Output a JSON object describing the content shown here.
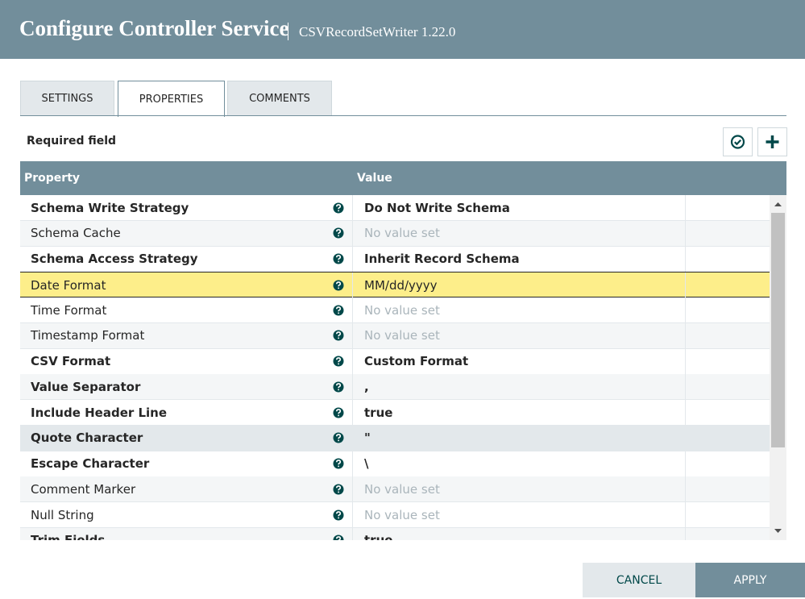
{
  "header": {
    "title": "Configure Controller Service",
    "subtitle": "CSVRecordSetWriter 1.22.0"
  },
  "tabs": [
    {
      "label": "SETTINGS",
      "active": false
    },
    {
      "label": "PROPERTIES",
      "active": true
    },
    {
      "label": "COMMENTS",
      "active": false
    }
  ],
  "required_label": "Required field",
  "table": {
    "columns": [
      "Property",
      "Value"
    ],
    "rows": [
      {
        "name": "Schema Write Strategy",
        "value": "Do Not Write Schema",
        "required": true,
        "placeholder": false,
        "state": "normal"
      },
      {
        "name": "Schema Cache",
        "value": "No value set",
        "required": false,
        "placeholder": true,
        "state": "normal"
      },
      {
        "name": "Schema Access Strategy",
        "value": "Inherit Record Schema",
        "required": true,
        "placeholder": false,
        "state": "normal"
      },
      {
        "name": "Date Format",
        "value": "MM/dd/yyyy",
        "required": false,
        "placeholder": false,
        "state": "selected"
      },
      {
        "name": "Time Format",
        "value": "No value set",
        "required": false,
        "placeholder": true,
        "state": "normal"
      },
      {
        "name": "Timestamp Format",
        "value": "No value set",
        "required": false,
        "placeholder": true,
        "state": "normal"
      },
      {
        "name": "CSV Format",
        "value": "Custom Format",
        "required": true,
        "placeholder": false,
        "state": "normal"
      },
      {
        "name": "Value Separator",
        "value": ",",
        "required": true,
        "placeholder": false,
        "state": "normal"
      },
      {
        "name": "Include Header Line",
        "value": "true",
        "required": true,
        "placeholder": false,
        "state": "normal"
      },
      {
        "name": "Quote Character",
        "value": "\"",
        "required": true,
        "placeholder": false,
        "state": "hover"
      },
      {
        "name": "Escape Character",
        "value": "\\",
        "required": true,
        "placeholder": false,
        "state": "normal"
      },
      {
        "name": "Comment Marker",
        "value": "No value set",
        "required": false,
        "placeholder": true,
        "state": "normal"
      },
      {
        "name": "Null String",
        "value": "No value set",
        "required": false,
        "placeholder": true,
        "state": "normal"
      },
      {
        "name": "Trim Fields",
        "value": "true",
        "required": true,
        "placeholder": false,
        "state": "normal"
      }
    ]
  },
  "buttons": {
    "cancel": "CANCEL",
    "apply": "APPLY"
  }
}
